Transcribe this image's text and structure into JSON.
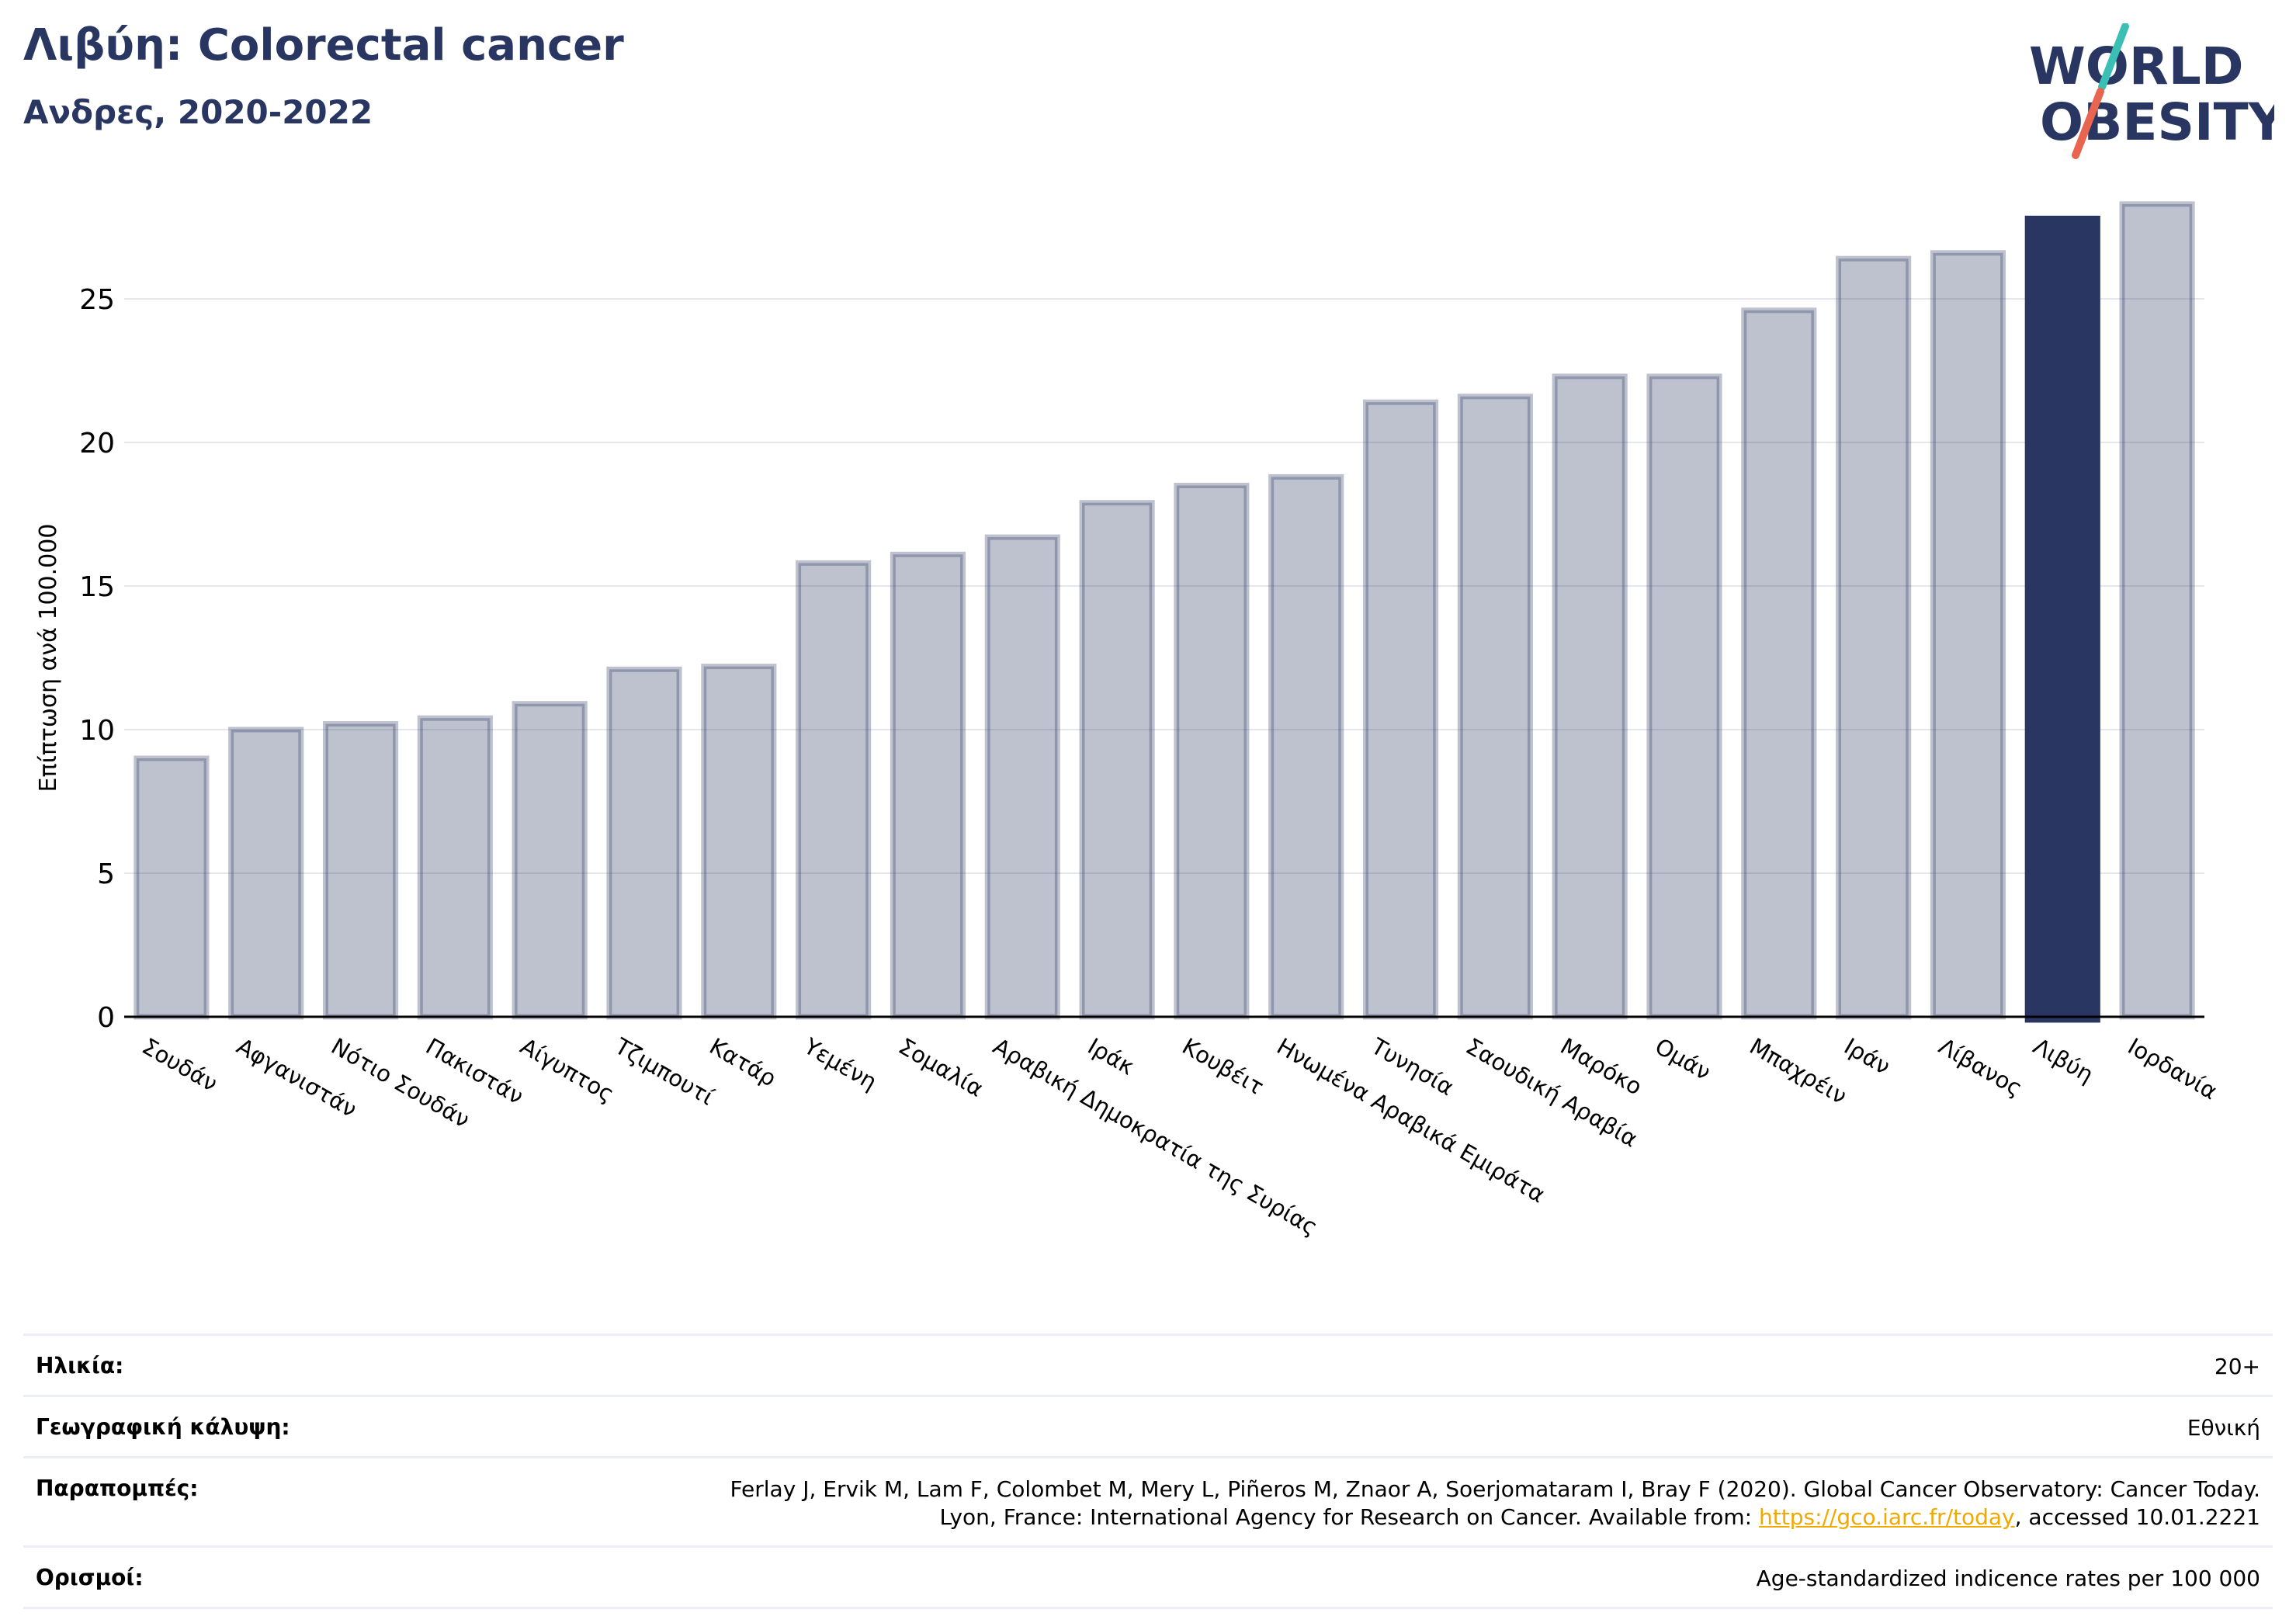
{
  "header": {
    "title": "Λιβύη: Colorectal cancer",
    "subtitle": "Ανδρες, 2020-2022"
  },
  "logo": {
    "line1": "WORLD",
    "line2": "OBESITY",
    "text_color": "#283661",
    "slash_colors": [
      "#3bbfb5",
      "#e8664f"
    ]
  },
  "chart_data": {
    "type": "bar",
    "title": "Λιβύη: Colorectal cancer",
    "subtitle": "Ανδρες, 2020-2022",
    "ylabel": "Επίπτωση ανά 100.000",
    "xlabel": "",
    "ylim": [
      0,
      28.5
    ],
    "yticks": [
      0,
      5,
      10,
      15,
      20,
      25
    ],
    "grid": true,
    "highlight": "Λιβύη",
    "colors": {
      "bar": "#283661",
      "highlight": "#283661",
      "grid": "#e6e6ee",
      "axis": "#000000"
    },
    "categories": [
      "Σουδάν",
      "Αφγανιστάν",
      "Νότιο Σουδάν",
      "Πακιστάν",
      "Αίγυπτος",
      "Τζιμπουτί",
      "Κατάρ",
      "Υεμένη",
      "Σομαλία",
      "Αραβική Δημοκρατία της Συρίας",
      "Ιράκ",
      "Κουβέιτ",
      "Ηνωμένα Αραβικά Εμιράτα",
      "Τυνησία",
      "Σαουδική Αραβία",
      "Μαρόκο",
      "Ομάν",
      "Μπαχρέιν",
      "Ιράν",
      "Λίβανος",
      "Λιβύη",
      "Ιορδανία"
    ],
    "values": [
      9.0,
      10.0,
      10.2,
      10.4,
      10.9,
      12.1,
      12.2,
      15.8,
      16.1,
      16.7,
      17.9,
      18.5,
      18.8,
      21.4,
      21.6,
      22.3,
      22.3,
      24.6,
      26.4,
      26.6,
      27.8,
      28.3
    ]
  },
  "info": {
    "age": {
      "label": "Ηλικία:",
      "value": "20+"
    },
    "coverage": {
      "label": "Γεωγραφική κάλυψη:",
      "value": "Εθνική"
    },
    "references": {
      "label": "Παραπομπές:",
      "line1": "Ferlay J, Ervik M, Lam F, Colombet M, Mery L, Piñeros M, Znaor A, Soerjomataram I, Bray F (2020). Global Cancer Observatory: Cancer Today.",
      "line2_prefix": "Lyon, France: International Agency for Research on Cancer. Available from: ",
      "link": "https://gco.iarc.fr/today",
      "line2_suffix": ", accessed 10.01.2221"
    },
    "definitions": {
      "label": "Ορισμοί:",
      "value": "Age-standardized indicence rates per 100 000"
    }
  }
}
